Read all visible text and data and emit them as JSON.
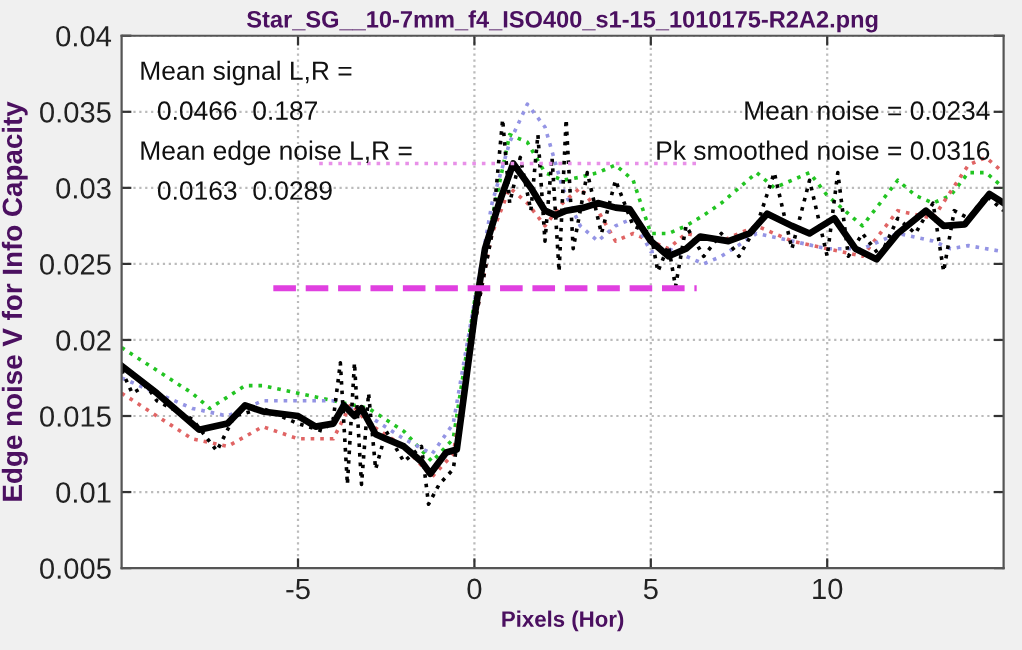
{
  "chart_data": {
    "type": "line",
    "title": "Star_SG__10-7mm_f4_ISO400_s1-15_1010175-R2A2.png",
    "xlabel": "Pixels (Hor)",
    "ylabel": "Edge noise V for Info Capacity",
    "xlim": [
      -10,
      15
    ],
    "xticks": [
      -5,
      0,
      5,
      10
    ],
    "ylim": [
      0.005,
      0.04
    ],
    "yticks": [
      0.005,
      0.01,
      0.015,
      0.02,
      0.025,
      0.03,
      0.035,
      0.04
    ],
    "grid": true,
    "annotations": [
      "Mean signal L,R =",
      "0.0466  0.187",
      "Mean edge noise L,R =",
      "0.0163  0.0289",
      "Mean noise = 0.0234",
      "Pk smoothed noise = 0.0316"
    ],
    "series": [
      {
        "color": "#22c422",
        "line_style": "dotted",
        "x": [
          -10,
          -8,
          -7.5,
          -6.5,
          -6,
          -5,
          -4,
          -3,
          -2,
          -1.2,
          -0.6,
          0,
          0.5,
          1,
          1.5,
          2,
          2.5,
          3,
          3.5,
          4,
          4.5,
          5,
          5.5,
          6,
          6.5,
          7,
          7.5,
          8,
          8.5,
          9,
          9.5,
          10,
          10.5,
          11,
          11.5,
          12,
          12.5,
          13,
          13.5,
          14,
          14.5,
          15
        ],
        "values": [
          0.0195,
          0.0165,
          0.0155,
          0.017,
          0.017,
          0.0165,
          0.016,
          0.0155,
          0.014,
          0.012,
          0.0135,
          0.0225,
          0.028,
          0.0335,
          0.033,
          0.031,
          0.0305,
          0.0307,
          0.031,
          0.0315,
          0.0305,
          0.027,
          0.027,
          0.0275,
          0.0282,
          0.029,
          0.03,
          0.031,
          0.03,
          0.0305,
          0.031,
          0.0295,
          0.0285,
          0.0275,
          0.029,
          0.0305,
          0.0295,
          0.029,
          0.0295,
          0.031,
          0.031,
          0.03
        ]
      },
      {
        "color": "#e06464",
        "line_style": "dotted",
        "x": [
          -10,
          -8,
          -7,
          -6,
          -5,
          -4,
          -3.5,
          -3,
          -2,
          -1.2,
          -0.6,
          0,
          0.5,
          1,
          1.5,
          2,
          2.5,
          3,
          3.5,
          4,
          4.5,
          5,
          5.5,
          6,
          7,
          8,
          9,
          10,
          11,
          12,
          13,
          14,
          14.5,
          15
        ],
        "values": [
          0.0165,
          0.0135,
          0.013,
          0.0143,
          0.0135,
          0.0135,
          0.0158,
          0.0145,
          0.013,
          0.011,
          0.0125,
          0.021,
          0.027,
          0.03,
          0.029,
          0.0275,
          0.029,
          0.03,
          0.0285,
          0.0265,
          0.027,
          0.0265,
          0.026,
          0.027,
          0.0265,
          0.0275,
          0.0265,
          0.026,
          0.0255,
          0.0285,
          0.028,
          0.0315,
          0.032,
          0.031
        ]
      },
      {
        "color": "#9494e4",
        "line_style": "dotted",
        "x": [
          -10,
          -8,
          -7,
          -6,
          -5,
          -4,
          -3,
          -2,
          -1.2,
          -0.6,
          0,
          0.5,
          1,
          1.5,
          2,
          2.5,
          3,
          3.5,
          4,
          4.5,
          5,
          5.5,
          6,
          6.5,
          7,
          8,
          9,
          10,
          11,
          12,
          13,
          13.5,
          14,
          15
        ],
        "values": [
          0.0175,
          0.0155,
          0.015,
          0.016,
          0.016,
          0.016,
          0.015,
          0.0135,
          0.0125,
          0.0145,
          0.0225,
          0.029,
          0.033,
          0.0355,
          0.034,
          0.03,
          0.0275,
          0.0265,
          0.0275,
          0.028,
          0.0258,
          0.026,
          0.0255,
          0.025,
          0.0255,
          0.027,
          0.0265,
          0.026,
          0.026,
          0.027,
          0.0265,
          0.026,
          0.0262,
          0.0258
        ]
      },
      {
        "color": "#000000",
        "line_style": "dotted",
        "x": [
          -10,
          -9.7,
          -9.3,
          -9,
          -8,
          -7.3,
          -6.8,
          -6,
          -5,
          -4.3,
          -4,
          -3.8,
          -3.6,
          -3.4,
          -3.2,
          -3,
          -2.8,
          -2.5,
          -2,
          -1.5,
          -1.3,
          -1,
          -0.6,
          0,
          0.5,
          0.8,
          1,
          1.3,
          1.6,
          1.8,
          2,
          2.2,
          2.4,
          2.6,
          2.8,
          3.2,
          3.6,
          4,
          4.5,
          5,
          5.2,
          5.5,
          5.7,
          6,
          6.5,
          7,
          7.5,
          8,
          8.5,
          9,
          9.5,
          10,
          10.3,
          10.6,
          11,
          11.5,
          12,
          12.5,
          13,
          13.3,
          13.6,
          14,
          14.5,
          15
        ],
        "values": [
          0.018,
          0.0165,
          0.017,
          0.016,
          0.0148,
          0.0127,
          0.015,
          0.0155,
          0.0145,
          0.014,
          0.0148,
          0.0185,
          0.0105,
          0.0185,
          0.0105,
          0.0165,
          0.0115,
          0.014,
          0.012,
          0.013,
          0.0092,
          0.0105,
          0.0115,
          0.021,
          0.027,
          0.0345,
          0.029,
          0.032,
          0.0285,
          0.0335,
          0.0265,
          0.032,
          0.0245,
          0.0345,
          0.026,
          0.031,
          0.027,
          0.0305,
          0.0275,
          0.027,
          0.0245,
          0.0262,
          0.0235,
          0.0275,
          0.0255,
          0.027,
          0.0255,
          0.0275,
          0.031,
          0.026,
          0.0305,
          0.0255,
          0.031,
          0.0255,
          0.027,
          0.0255,
          0.028,
          0.027,
          0.029,
          0.0245,
          0.0285,
          0.028,
          0.0295,
          0.0285
        ]
      },
      {
        "color": "#000000",
        "line_style": "solid",
        "x": [
          -10,
          -9,
          -7.8,
          -7,
          -6.5,
          -6,
          -5,
          -4.5,
          -4,
          -3.7,
          -3.4,
          -3.2,
          -2.8,
          -2.5,
          -2,
          -1.5,
          -1.25,
          -0.8,
          -0.5,
          0,
          0.3,
          0.7,
          1.1,
          1.6,
          2,
          2.3,
          2.6,
          3.1,
          3.5,
          4,
          4.4,
          5,
          5.5,
          6,
          6.4,
          7.2,
          7.8,
          8.3,
          9,
          9.5,
          10.2,
          10.8,
          11.4,
          12,
          12.8,
          13.3,
          13.9,
          14.6,
          15
        ],
        "values": [
          0.0183,
          0.0165,
          0.0141,
          0.0145,
          0.0157,
          0.0153,
          0.015,
          0.0143,
          0.0145,
          0.0157,
          0.015,
          0.0155,
          0.0138,
          0.0135,
          0.013,
          0.012,
          0.0112,
          0.0126,
          0.0128,
          0.0215,
          0.026,
          0.029,
          0.0316,
          0.03,
          0.0285,
          0.0282,
          0.0285,
          0.0287,
          0.029,
          0.0287,
          0.0286,
          0.0265,
          0.0255,
          0.026,
          0.0268,
          0.0265,
          0.027,
          0.0283,
          0.0275,
          0.027,
          0.028,
          0.026,
          0.0253,
          0.027,
          0.0285,
          0.0275,
          0.0276,
          0.0296,
          0.029
        ]
      },
      {
        "color": "#e040e0",
        "line_style": "dashed",
        "x": [
          -5.7,
          6.3
        ],
        "values": [
          0.0234,
          0.0234
        ]
      },
      {
        "color": "#e890e8",
        "line_style": "dotted",
        "x": [
          -4.4,
          6.3
        ],
        "values": [
          0.0316,
          0.0316
        ]
      }
    ]
  }
}
